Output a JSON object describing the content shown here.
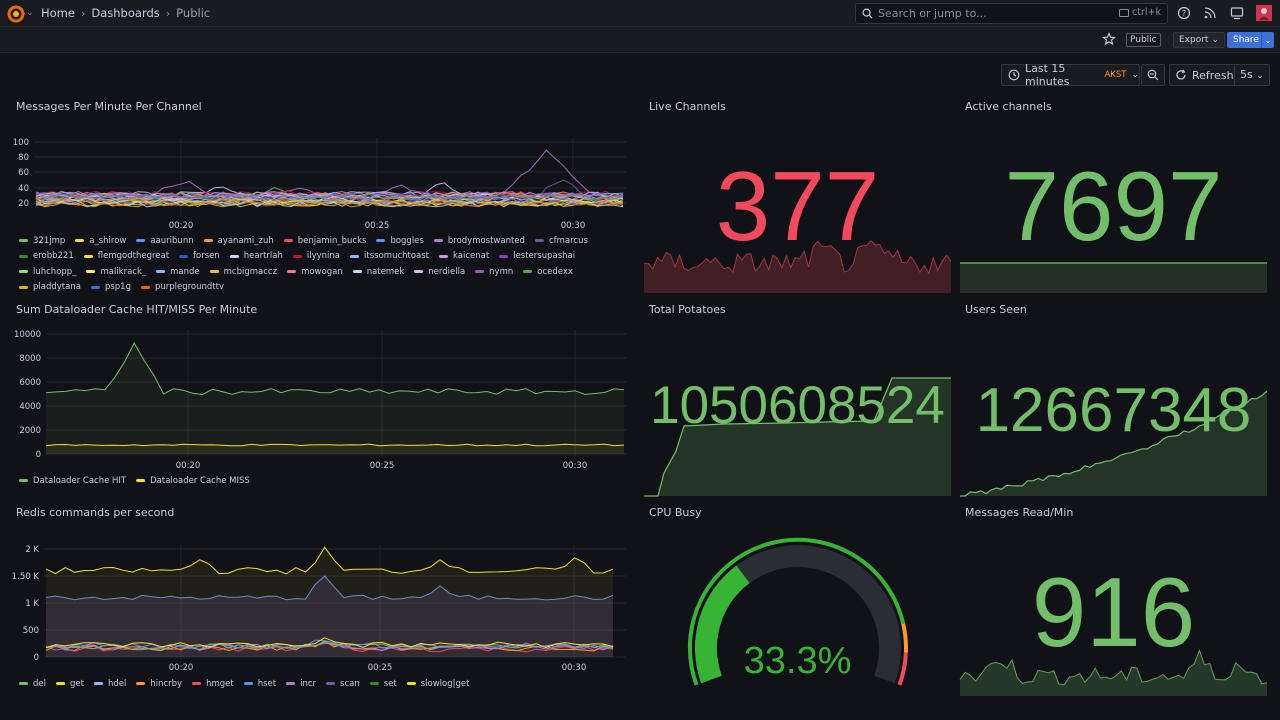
{
  "nav": {
    "breadcrumbs": [
      {
        "label": "Home"
      },
      {
        "label": "Dashboards"
      },
      {
        "label": "Public"
      }
    ],
    "search_placeholder": "Search or jump to...",
    "search_shortcut": "ctrl+k"
  },
  "toolbar": {
    "public_tag": "Public",
    "export_label": "Export",
    "share_label": "Share"
  },
  "timecontrols": {
    "range_label": "Last 15 minutes",
    "timezone": "AKST",
    "refresh_label": "Refresh",
    "refresh_interval": "5s"
  },
  "colors": {
    "green": "#73bf69",
    "red": "#f2495c",
    "yellow": "#fade2a",
    "blue": "#5794f2",
    "purple": "#b877d9",
    "orange": "#ff9830"
  },
  "panels": {
    "messages": {
      "title": "Messages Per Minute Per Channel",
      "yticks": [
        "100",
        "80",
        "60",
        "40",
        "20"
      ],
      "xticks": [
        "00:20",
        "00:25",
        "00:30"
      ],
      "legend": [
        {
          "name": "321jmp",
          "color": "#73bf69"
        },
        {
          "name": "a_shirow",
          "color": "#fade2a"
        },
        {
          "name": "aauribunn",
          "color": "#5794f2"
        },
        {
          "name": "ayanami_zuh",
          "color": "#ff9830"
        },
        {
          "name": "benjamin_bucks",
          "color": "#f2495c"
        },
        {
          "name": "boggles",
          "color": "#5794f2"
        },
        {
          "name": "brodymostwanted",
          "color": "#b877d9"
        },
        {
          "name": "cfmarcus",
          "color": "#705da0"
        },
        {
          "name": "erobb221",
          "color": "#37872d"
        },
        {
          "name": "flemgodthegreat",
          "color": "#fade2a"
        },
        {
          "name": "forsen",
          "color": "#1f60c4"
        },
        {
          "name": "heartrlah",
          "color": "#c0d8ff"
        },
        {
          "name": "ilyynina",
          "color": "#c4162a"
        },
        {
          "name": "itssomuchtoast",
          "color": "#8ab8ff"
        },
        {
          "name": "kaicenat",
          "color": "#ca95e5"
        },
        {
          "name": "lestersupashai",
          "color": "#8f3bb8"
        },
        {
          "name": "luhchopp_",
          "color": "#96d98d"
        },
        {
          "name": "malikrack_",
          "color": "#ffee52"
        },
        {
          "name": "mande",
          "color": "#8ab8ff"
        },
        {
          "name": "mcbigmaccz",
          "color": "#ffb357"
        },
        {
          "name": "mowogan",
          "color": "#ff7383"
        },
        {
          "name": "natemek",
          "color": "#c0d8ff"
        },
        {
          "name": "nerdiella",
          "color": "#deb6f2"
        },
        {
          "name": "nymn",
          "color": "#a352cc"
        },
        {
          "name": "ocedexx",
          "color": "#56a64b"
        },
        {
          "name": "pladdytana",
          "color": "#e0b400"
        },
        {
          "name": "psp1g",
          "color": "#3274d9"
        },
        {
          "name": "purplegroundttv",
          "color": "#fa6400"
        }
      ]
    },
    "live": {
      "title": "Live Channels",
      "value": "377"
    },
    "active": {
      "title": "Active channels",
      "value": "7697"
    },
    "dataloader": {
      "title": "Sum Dataloader Cache HIT/MISS Per Minute",
      "yticks": [
        "10000",
        "8000",
        "6000",
        "4000",
        "2000",
        "0"
      ],
      "xticks": [
        "00:20",
        "00:25",
        "00:30"
      ],
      "legend": [
        {
          "name": "Dataloader Cache HIT",
          "color": "#73bf69"
        },
        {
          "name": "Dataloader Cache MISS",
          "color": "#fade2a"
        }
      ]
    },
    "potatoes": {
      "title": "Total Potatoes",
      "value": "1050608524"
    },
    "users": {
      "title": "Users Seen",
      "value": "12667348"
    },
    "redis": {
      "title": "Redis commands per second",
      "yticks": [
        "2 K",
        "1.50 K",
        "1 K",
        "500",
        "0"
      ],
      "xticks": [
        "00:20",
        "00:25",
        "00:30"
      ],
      "legend": [
        {
          "name": "del",
          "color": "#73bf69"
        },
        {
          "name": "get",
          "color": "#fade2a"
        },
        {
          "name": "hdel",
          "color": "#8ab8ff"
        },
        {
          "name": "hincrby",
          "color": "#ff9830"
        },
        {
          "name": "hmget",
          "color": "#f2495c"
        },
        {
          "name": "hset",
          "color": "#5794f2"
        },
        {
          "name": "incr",
          "color": "#b877d9"
        },
        {
          "name": "scan",
          "color": "#705da0"
        },
        {
          "name": "set",
          "color": "#37872d"
        },
        {
          "name": "slowlog|get",
          "color": "#fade2a"
        }
      ]
    },
    "cpu": {
      "title": "CPU Busy",
      "value": "33.3%",
      "percent": 33.3
    },
    "readmin": {
      "title": "Messages Read/Min",
      "value": "916"
    }
  }
}
